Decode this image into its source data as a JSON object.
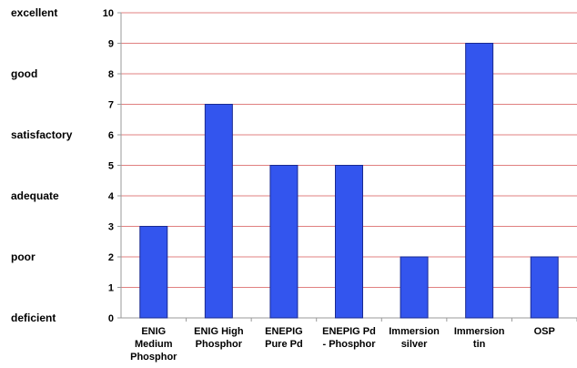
{
  "chart_data": {
    "type": "bar",
    "categories": [
      [
        "ENIG",
        "Medium",
        "Phosphor"
      ],
      [
        "ENIG High",
        "Phosphor"
      ],
      [
        "ENEPIG",
        "Pure Pd"
      ],
      [
        "ENEPIG Pd",
        "- Phosphor"
      ],
      [
        "Immersion",
        "silver"
      ],
      [
        "Immersion",
        "tin"
      ],
      [
        "OSP"
      ]
    ],
    "values": [
      3,
      7,
      5,
      5,
      2,
      9,
      2
    ],
    "ylim": [
      0,
      10
    ],
    "yticks": [
      0,
      1,
      2,
      3,
      4,
      5,
      6,
      7,
      8,
      9,
      10
    ],
    "rating_labels": [
      {
        "label": "excellent",
        "y": 10
      },
      {
        "label": "good",
        "y": 8
      },
      {
        "label": "satisfactory",
        "y": 6
      },
      {
        "label": "adequate",
        "y": 4
      },
      {
        "label": "poor",
        "y": 2
      },
      {
        "label": "deficient",
        "y": 0
      }
    ],
    "grid": true,
    "colors": {
      "bar_fill": "#3355ee",
      "bar_stroke": "#1a2a90",
      "grid": "#e08080",
      "axis": "#999999"
    }
  }
}
